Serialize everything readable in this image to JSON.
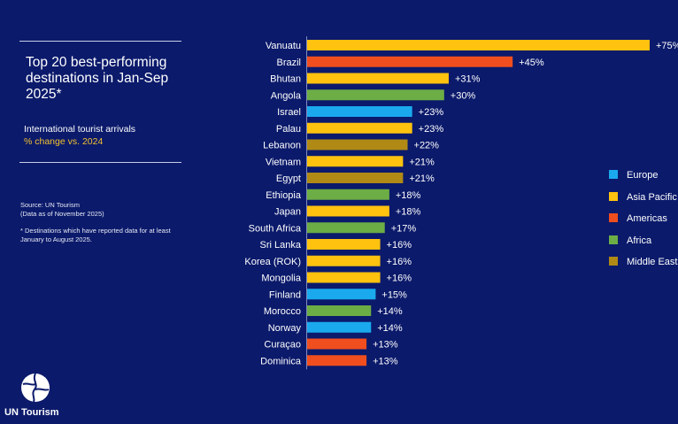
{
  "title": "Top 20 best-performing destinations in Jan-Sep 2025*",
  "subtitle_line1": "International tourist arrivals",
  "subtitle_line2": "% change vs. 2024",
  "source_line1": "Source: UN Tourism",
  "source_line2": "(Data as of November 2025)",
  "footnote": "* Destinations which have reported data for at least January to August 2025.",
  "logo_text": "UN Tourism",
  "colors": {
    "background": "#0b1a6b",
    "Europe": "#1ba9ee",
    "Asia Pacific": "#ffc20e",
    "Americas": "#f04e1e",
    "Africa": "#6cad45",
    "Middle East": "#b08a14"
  },
  "chart_data": {
    "type": "bar",
    "orientation": "horizontal",
    "title": "Top 20 best-performing destinations in Jan-Sep 2025*",
    "categories": [
      "Vanuatu",
      "Brazil",
      "Bhutan",
      "Angola",
      "Israel",
      "Palau",
      "Lebanon",
      "Vietnam",
      "Egypt",
      "Ethiopia",
      "Japan",
      "South Africa",
      "Sri Lanka",
      "Korea (ROK)",
      "Mongolia",
      "Finland",
      "Morocco",
      "Norway",
      "Curaçao",
      "Dominica"
    ],
    "values": [
      75,
      45,
      31,
      30,
      23,
      23,
      22,
      21,
      21,
      18,
      18,
      17,
      16,
      16,
      16,
      15,
      14,
      14,
      13,
      13
    ],
    "value_labels": [
      "+75%",
      "+45%",
      "+31%",
      "+30%",
      "+23%",
      "+23%",
      "+22%",
      "+21%",
      "+21%",
      "+18%",
      "+18%",
      "+17%",
      "+16%",
      "+16%",
      "+16%",
      "+15%",
      "+14%",
      "+14%",
      "+13%",
      "+13%"
    ],
    "regions": [
      "Asia Pacific",
      "Americas",
      "Asia Pacific",
      "Africa",
      "Europe",
      "Asia Pacific",
      "Middle East",
      "Asia Pacific",
      "Middle East",
      "Africa",
      "Asia Pacific",
      "Africa",
      "Asia Pacific",
      "Asia Pacific",
      "Asia Pacific",
      "Europe",
      "Africa",
      "Europe",
      "Americas",
      "Americas"
    ],
    "xlim": [
      0,
      75
    ],
    "grid": false,
    "legend": {
      "position": "right",
      "entries": [
        "Europe",
        "Asia Pacific",
        "Americas",
        "Africa",
        "Middle East"
      ]
    }
  }
}
